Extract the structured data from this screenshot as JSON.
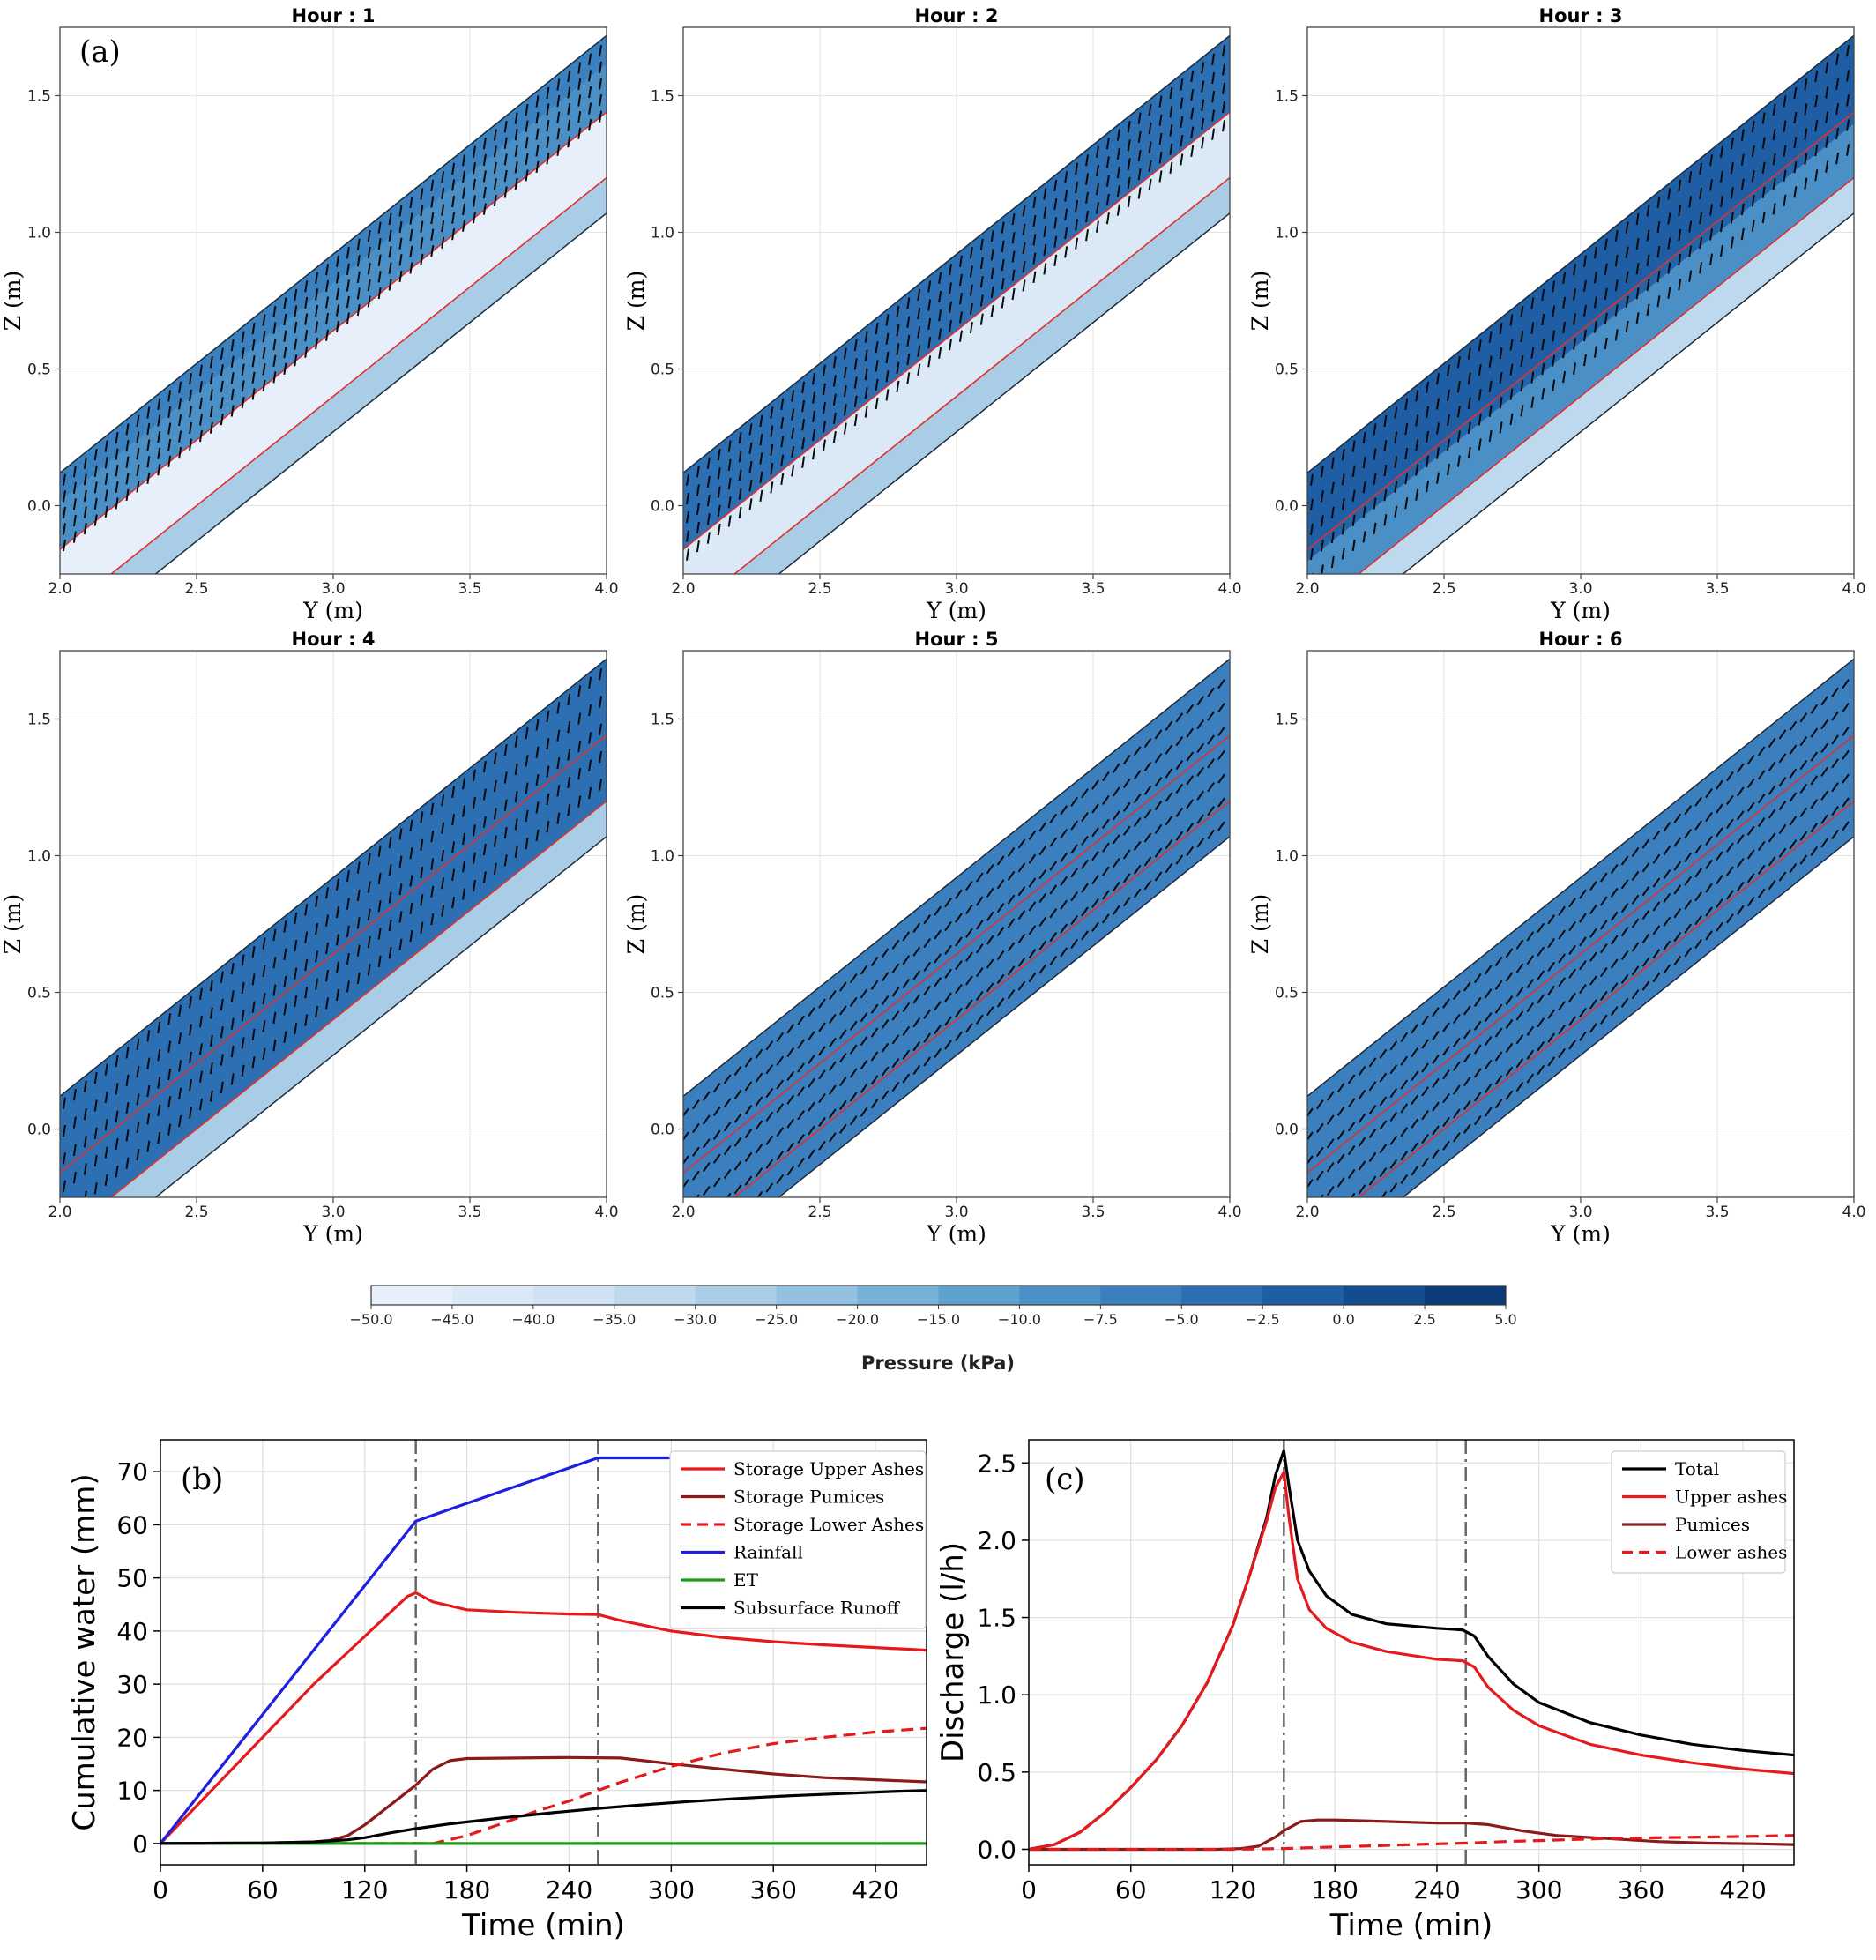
{
  "figure": {
    "panel_a_label": "(a)",
    "panel_b_label": "(b)",
    "panel_c_label": "(c)"
  },
  "colors": {
    "upper_ashes": "#e41a1c",
    "pumices": "#8b1a1a",
    "rainfall": "#1f1fe0",
    "et": "#1a9a1a",
    "black": "#000000",
    "pressure_cmap": [
      "#f3f7fc",
      "#e7f0fa",
      "#dbe9f6",
      "#cfe2f3",
      "#bed8ed",
      "#a9cde6",
      "#93c0df",
      "#78b1d7",
      "#5ea0ce",
      "#4a8fc5",
      "#3b7fbe",
      "#2c6fb3",
      "#1f5ea4",
      "#134d8f",
      "#0b3c79",
      "#062e63"
    ]
  },
  "chart_data": [
    {
      "type": "heatmap",
      "title": "Hour : 1",
      "xlabel": "Y (m)",
      "ylabel": "Z (m)",
      "xlim": [
        2.0,
        4.0
      ],
      "ylim": [
        -0.25,
        1.75
      ],
      "xticks": [
        "2.0",
        "2.5",
        "3.0",
        "3.5",
        "4.0"
      ],
      "yticks": [
        "0.0",
        "0.5",
        "1.0",
        "1.5"
      ],
      "layers_pressure_kPa": {
        "upper_ashes": -5,
        "pumices": -40,
        "lower_ashes": -20
      },
      "wetting_front_depth_fraction": 0.2,
      "arrow_direction": "down"
    },
    {
      "type": "heatmap",
      "title": "Hour : 2",
      "xlabel": "Y (m)",
      "ylabel": "Z (m)",
      "xlim": [
        2.0,
        4.0
      ],
      "ylim": [
        -0.25,
        1.75
      ],
      "xticks": [
        "2.0",
        "2.5",
        "3.0",
        "3.5",
        "4.0"
      ],
      "yticks": [
        "0.0",
        "0.5",
        "1.0",
        "1.5"
      ],
      "layers_pressure_kPa": {
        "upper_ashes": -2,
        "pumices": -35,
        "lower_ashes": -20
      },
      "wetting_front_depth_fraction": 0.45,
      "arrow_direction": "down"
    },
    {
      "type": "heatmap",
      "title": "Hour : 3",
      "xlabel": "Y (m)",
      "ylabel": "Z (m)",
      "xlim": [
        2.0,
        4.0
      ],
      "ylim": [
        -0.25,
        1.75
      ],
      "xticks": [
        "2.0",
        "2.5",
        "3.0",
        "3.5",
        "4.0"
      ],
      "yticks": [
        "0.0",
        "0.5",
        "1.0",
        "1.5"
      ],
      "layers_pressure_kPa": {
        "upper_ashes": 1,
        "pumices": -5,
        "lower_ashes": -25
      },
      "wetting_front_depth_fraction": 0.62,
      "arrow_direction": "down"
    },
    {
      "type": "heatmap",
      "title": "Hour : 4",
      "xlabel": "Y (m)",
      "ylabel": "Z (m)",
      "xlim": [
        2.0,
        4.0
      ],
      "ylim": [
        -0.25,
        1.75
      ],
      "xticks": [
        "2.0",
        "2.5",
        "3.0",
        "3.5",
        "4.0"
      ],
      "yticks": [
        "0.0",
        "0.5",
        "1.0",
        "1.5"
      ],
      "layers_pressure_kPa": {
        "upper_ashes": -1,
        "pumices": -2,
        "lower_ashes": -20
      },
      "wetting_front_depth_fraction": 0.7,
      "arrow_direction": "down"
    },
    {
      "type": "heatmap",
      "title": "Hour : 5",
      "xlabel": "Y (m)",
      "ylabel": "Z (m)",
      "xlim": [
        2.0,
        4.0
      ],
      "ylim": [
        -0.25,
        1.75
      ],
      "xticks": [
        "2.0",
        "2.5",
        "3.0",
        "3.5",
        "4.0"
      ],
      "yticks": [
        "0.0",
        "0.5",
        "1.0",
        "1.5"
      ],
      "layers_pressure_kPa": {
        "upper_ashes": -4,
        "pumices": -4,
        "lower_ashes": -4
      },
      "wetting_front_depth_fraction": 0.2,
      "arrow_direction": "down-slope"
    },
    {
      "type": "heatmap",
      "title": "Hour : 6",
      "xlabel": "Y (m)",
      "ylabel": "Z (m)",
      "xlim": [
        2.0,
        4.0
      ],
      "ylim": [
        -0.25,
        1.75
      ],
      "xticks": [
        "2.0",
        "2.5",
        "3.0",
        "3.5",
        "4.0"
      ],
      "yticks": [
        "0.0",
        "0.5",
        "1.0",
        "1.5"
      ],
      "layers_pressure_kPa": {
        "upper_ashes": -4,
        "pumices": -4,
        "lower_ashes": -4
      },
      "wetting_front_depth_fraction": 0.2,
      "arrow_direction": "down-slope"
    },
    {
      "type": "line",
      "title": "",
      "xlabel": "Time (min)",
      "ylabel": "Cumulative water (mm)",
      "xlim": [
        0,
        450
      ],
      "ylim": [
        -4,
        76
      ],
      "xticks": [
        0,
        60,
        120,
        180,
        240,
        300,
        360,
        420
      ],
      "yticks": [
        0,
        10,
        20,
        30,
        40,
        50,
        60,
        70
      ],
      "vlines": [
        150,
        257
      ],
      "legend_position": "top-right",
      "series": [
        {
          "name": "Storage Upper Ashes",
          "color": "#e41a1c",
          "dash": "solid",
          "x": [
            0,
            30,
            60,
            90,
            110,
            130,
            145,
            150,
            160,
            180,
            210,
            240,
            257,
            270,
            300,
            330,
            360,
            390,
            420,
            450
          ],
          "y": [
            0,
            10,
            20,
            30,
            36,
            42,
            46.5,
            47.2,
            45.5,
            44,
            43.5,
            43.2,
            43.1,
            42,
            40,
            38.8,
            38,
            37.4,
            36.9,
            36.4
          ]
        },
        {
          "name": "Storage Pumices",
          "color": "#8b1a1a",
          "dash": "solid",
          "x": [
            0,
            60,
            90,
            100,
            110,
            120,
            130,
            140,
            150,
            160,
            170,
            180,
            210,
            240,
            270,
            300,
            330,
            360,
            390,
            420,
            450
          ],
          "y": [
            0,
            0.1,
            0.3,
            0.6,
            1.5,
            3.5,
            6,
            8.5,
            11,
            14,
            15.6,
            16,
            16.1,
            16.2,
            16.1,
            15,
            14,
            13.1,
            12.4,
            12,
            11.6
          ]
        },
        {
          "name": "Storage Lower Ashes",
          "color": "#e41a1c",
          "dash": "dashed",
          "x": [
            0,
            140,
            150,
            160,
            180,
            200,
            220,
            240,
            257,
            270,
            300,
            330,
            360,
            390,
            420,
            450
          ],
          "y": [
            0,
            0,
            0,
            0,
            1.5,
            3.7,
            6,
            8,
            10,
            11.5,
            14.5,
            17,
            18.8,
            20,
            21,
            21.7
          ]
        },
        {
          "name": "Rainfall",
          "color": "#1f1fe0",
          "dash": "solid",
          "x": [
            0,
            150,
            257,
            450
          ],
          "y": [
            0,
            60.7,
            72.6,
            72.6
          ]
        },
        {
          "name": "ET",
          "color": "#1a9a1a",
          "dash": "solid",
          "x": [
            0,
            450
          ],
          "y": [
            0,
            0
          ]
        },
        {
          "name": "Subsurface Runoff",
          "color": "#000000",
          "dash": "solid",
          "x": [
            0,
            60,
            90,
            110,
            120,
            135,
            150,
            170,
            200,
            230,
            257,
            280,
            310,
            340,
            370,
            400,
            430,
            450
          ],
          "y": [
            0,
            0.1,
            0.3,
            0.7,
            1.1,
            2,
            2.8,
            3.7,
            4.8,
            5.8,
            6.6,
            7.2,
            7.9,
            8.5,
            9,
            9.4,
            9.8,
            10
          ]
        }
      ]
    },
    {
      "type": "line",
      "title": "",
      "xlabel": "Time (min)",
      "ylabel": "Discharge (l/h)",
      "xlim": [
        0,
        450
      ],
      "ylim": [
        -0.1,
        2.65
      ],
      "xticks": [
        0,
        60,
        120,
        180,
        240,
        300,
        360,
        420
      ],
      "yticks": [
        0.0,
        0.5,
        1.0,
        1.5,
        2.0,
        2.5
      ],
      "vlines": [
        150,
        257
      ],
      "legend_position": "top-right",
      "series": [
        {
          "name": "Total",
          "color": "#000000",
          "dash": "solid",
          "x": [
            0,
            15,
            30,
            45,
            60,
            75,
            90,
            105,
            120,
            130,
            140,
            145,
            150,
            153,
            158,
            165,
            175,
            190,
            210,
            240,
            255,
            262,
            270,
            285,
            300,
            330,
            360,
            390,
            420,
            450
          ],
          "y": [
            0,
            0.03,
            0.11,
            0.24,
            0.4,
            0.58,
            0.8,
            1.08,
            1.45,
            1.78,
            2.15,
            2.42,
            2.58,
            2.35,
            2.0,
            1.8,
            1.64,
            1.52,
            1.46,
            1.43,
            1.42,
            1.38,
            1.25,
            1.07,
            0.95,
            0.82,
            0.74,
            0.68,
            0.64,
            0.61
          ]
        },
        {
          "name": "Upper ashes",
          "color": "#e41a1c",
          "dash": "solid",
          "x": [
            0,
            15,
            30,
            45,
            60,
            75,
            90,
            105,
            120,
            130,
            140,
            145,
            150,
            153,
            158,
            165,
            175,
            190,
            210,
            240,
            255,
            262,
            270,
            285,
            300,
            330,
            360,
            390,
            420,
            450
          ],
          "y": [
            0,
            0.03,
            0.11,
            0.24,
            0.4,
            0.58,
            0.8,
            1.08,
            1.45,
            1.78,
            2.13,
            2.34,
            2.44,
            2.15,
            1.75,
            1.55,
            1.43,
            1.34,
            1.28,
            1.23,
            1.22,
            1.18,
            1.05,
            0.9,
            0.8,
            0.68,
            0.61,
            0.56,
            0.52,
            0.49
          ]
        },
        {
          "name": "Pumices",
          "color": "#8b1a1a",
          "dash": "solid",
          "x": [
            0,
            110,
            125,
            135,
            145,
            150,
            160,
            170,
            180,
            210,
            240,
            257,
            270,
            290,
            310,
            340,
            370,
            400,
            430,
            450
          ],
          "y": [
            0,
            0,
            0.005,
            0.02,
            0.08,
            0.12,
            0.18,
            0.19,
            0.19,
            0.18,
            0.17,
            0.17,
            0.16,
            0.12,
            0.09,
            0.07,
            0.05,
            0.04,
            0.035,
            0.03
          ]
        },
        {
          "name": "Lower ashes",
          "color": "#e41a1c",
          "dash": "dashed",
          "x": [
            0,
            120,
            150,
            180,
            210,
            240,
            257,
            280,
            310,
            340,
            370,
            400,
            430,
            450
          ],
          "y": [
            0,
            0,
            0.005,
            0.015,
            0.025,
            0.035,
            0.04,
            0.05,
            0.06,
            0.07,
            0.075,
            0.08,
            0.085,
            0.09
          ]
        }
      ]
    }
  ],
  "colorbar": {
    "label": "Pressure  (kPa)",
    "ticks": [
      "−50.0",
      "−45.0",
      "−40.0",
      "−35.0",
      "−30.0",
      "−25.0",
      "−20.0",
      "−15.0",
      "−10.0",
      "−7.5",
      "−5.0",
      "−2.5",
      "0.0",
      "2.5",
      "5.0"
    ]
  }
}
